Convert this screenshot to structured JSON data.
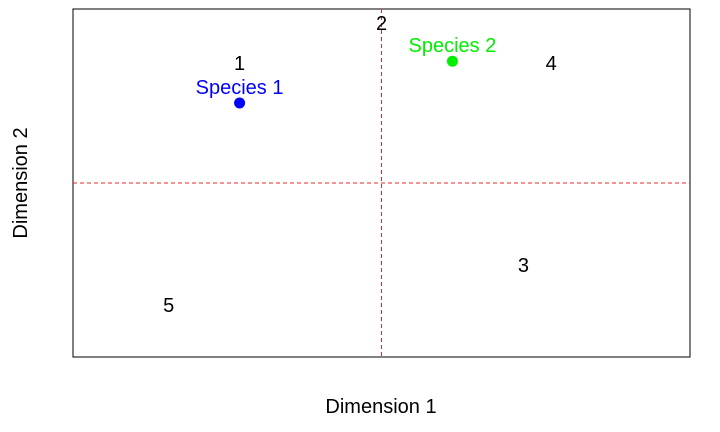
{
  "chart_data": {
    "type": "scatter",
    "xlabel": "Dimension 1",
    "ylabel": "Dimension 2",
    "xlim": [
      -1.0,
      1.0
    ],
    "ylim": [
      -1.0,
      1.0
    ],
    "grid": false,
    "reference_lines": [
      {
        "axis": "x",
        "value": 0,
        "style": "dashed",
        "color": "#e0282c"
      },
      {
        "axis": "y",
        "value": 0,
        "style": "dashed",
        "color": "#e0282c"
      }
    ],
    "site_labels": [
      {
        "label": "1",
        "x": -0.46,
        "y": 0.69
      },
      {
        "label": "2",
        "x": 0.0,
        "y": 0.92
      },
      {
        "label": "3",
        "x": 0.46,
        "y": -0.47
      },
      {
        "label": "4",
        "x": 0.55,
        "y": 0.69
      },
      {
        "label": "5",
        "x": -0.69,
        "y": -0.7
      }
    ],
    "species": [
      {
        "name": "Species 1",
        "x": -0.46,
        "y": 0.46,
        "color": "#0000ff"
      },
      {
        "name": "Species 2",
        "x": 0.23,
        "y": 0.7,
        "color": "#00ee00"
      }
    ]
  }
}
